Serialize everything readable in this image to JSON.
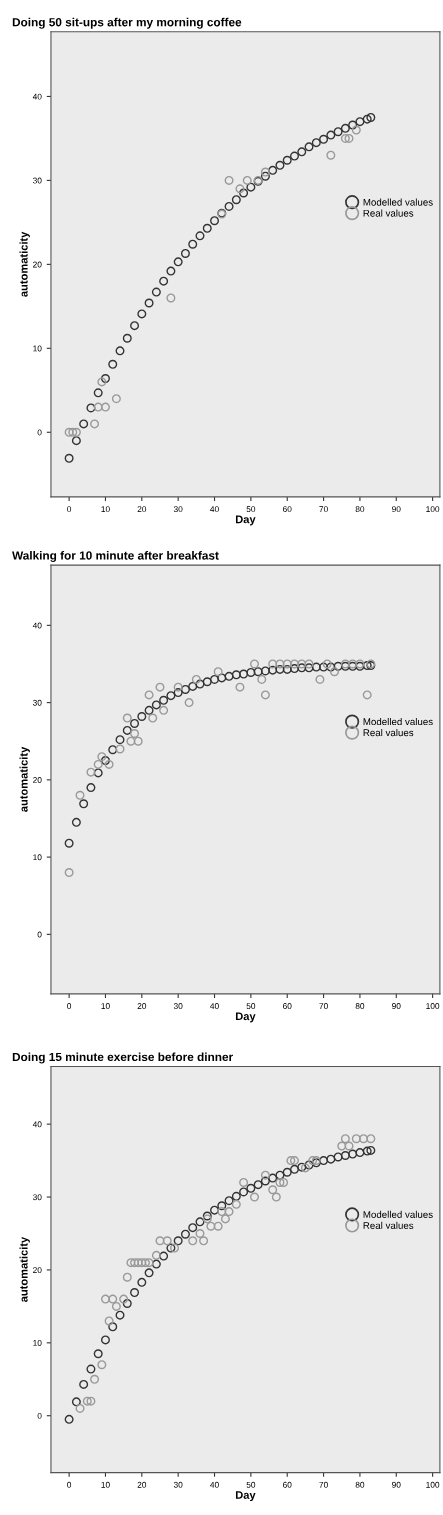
{
  "chart_data": [
    {
      "type": "scatter",
      "title": "Doing 50 sit-ups after my morning coffee",
      "xlabel": "Day",
      "ylabel": "automaticity",
      "xlim": [
        -5,
        102
      ],
      "ylim": [
        -7.7,
        47.7
      ],
      "xticks": [
        0,
        10,
        20,
        30,
        40,
        50,
        60,
        70,
        80,
        90,
        100
      ],
      "yticks": [
        0,
        10,
        20,
        30,
        40
      ],
      "legend": "right",
      "marker": "circle",
      "series": [
        {
          "name": "Modelled values",
          "color": "#333333",
          "x": [
            0,
            2,
            4,
            6,
            8,
            10,
            12,
            14,
            16,
            18,
            20,
            22,
            24,
            26,
            28,
            30,
            32,
            34,
            36,
            38,
            40,
            42,
            44,
            46,
            48,
            50,
            52,
            54,
            56,
            58,
            60,
            62,
            64,
            66,
            68,
            70,
            72,
            74,
            76,
            78,
            80,
            82,
            83
          ],
          "values": [
            -3.1,
            -1.0,
            1.0,
            2.9,
            4.7,
            6.4,
            8.1,
            9.7,
            11.2,
            12.7,
            14.1,
            15.4,
            16.7,
            18.0,
            19.2,
            20.3,
            21.3,
            22.4,
            23.4,
            24.3,
            25.2,
            26.1,
            26.9,
            27.7,
            28.5,
            29.2,
            29.9,
            30.5,
            31.2,
            31.8,
            32.4,
            32.9,
            33.4,
            34.0,
            34.5,
            34.9,
            35.4,
            35.8,
            36.2,
            36.6,
            37.0,
            37.3,
            37.5
          ]
        },
        {
          "name": "Real values",
          "color": "#999999",
          "x": [
            0,
            1,
            2,
            7,
            8,
            9,
            10,
            13,
            28,
            42,
            44,
            47,
            49,
            52,
            54,
            72,
            76,
            77,
            79
          ],
          "values": [
            0,
            0,
            0,
            1,
            3,
            6,
            3,
            4,
            16,
            26,
            30,
            29,
            30,
            30,
            31,
            33,
            35,
            35,
            36
          ]
        }
      ]
    },
    {
      "type": "scatter",
      "title": "Walking for 10 minute after breakfast",
      "xlabel": "Day",
      "ylabel": "automaticity",
      "xlim": [
        -5,
        102
      ],
      "ylim": [
        -7.7,
        47.8
      ],
      "xticks": [
        0,
        10,
        20,
        30,
        40,
        50,
        60,
        70,
        80,
        90,
        100
      ],
      "yticks": [
        0,
        10,
        20,
        30,
        40
      ],
      "legend": "right",
      "marker": "circle",
      "series": [
        {
          "name": "Modelled values",
          "color": "#333333",
          "x": [
            0,
            2,
            4,
            6,
            8,
            10,
            12,
            14,
            16,
            18,
            20,
            22,
            24,
            26,
            28,
            30,
            32,
            34,
            36,
            38,
            40,
            42,
            44,
            46,
            48,
            50,
            52,
            54,
            56,
            58,
            60,
            62,
            64,
            66,
            68,
            70,
            72,
            74,
            76,
            78,
            80,
            82,
            83
          ],
          "values": [
            11.8,
            14.5,
            16.9,
            19.0,
            20.9,
            22.5,
            23.9,
            25.2,
            26.4,
            27.3,
            28.2,
            29.0,
            29.7,
            30.3,
            30.9,
            31.3,
            31.7,
            32.1,
            32.4,
            32.7,
            33.0,
            33.2,
            33.4,
            33.6,
            33.7,
            33.9,
            34.0,
            34.1,
            34.2,
            34.3,
            34.3,
            34.4,
            34.5,
            34.5,
            34.6,
            34.6,
            34.6,
            34.7,
            34.7,
            34.7,
            34.7,
            34.8,
            34.8
          ]
        },
        {
          "name": "Real values",
          "color": "#999999",
          "x": [
            0,
            3,
            6,
            8,
            9,
            11,
            14,
            16,
            17,
            18,
            19,
            22,
            23,
            25,
            26,
            30,
            33,
            35,
            41,
            47,
            51,
            53,
            54,
            56,
            58,
            60,
            62,
            64,
            66,
            69,
            71,
            73,
            76,
            78,
            80,
            82,
            83
          ],
          "values": [
            8,
            18,
            21,
            22,
            23,
            22,
            24,
            28,
            25,
            26,
            25,
            31,
            28,
            32,
            29,
            32,
            30,
            33,
            34,
            32,
            35,
            33,
            31,
            35,
            35,
            35,
            35,
            35,
            35,
            33,
            35,
            34,
            35,
            35,
            35,
            31,
            35
          ]
        }
      ]
    },
    {
      "type": "scatter",
      "title": "Doing 15 minute exercise before dinner",
      "xlabel": "Day",
      "ylabel": "automaticity",
      "xlim": [
        -5,
        102
      ],
      "ylim": [
        -7.8,
        47.9
      ],
      "xticks": [
        0,
        10,
        20,
        30,
        40,
        50,
        60,
        70,
        80,
        90,
        100
      ],
      "yticks": [
        0,
        10,
        20,
        30,
        40
      ],
      "legend": "right",
      "marker": "circle",
      "series": [
        {
          "name": "Modelled values",
          "color": "#333333",
          "x": [
            0,
            2,
            4,
            6,
            8,
            10,
            12,
            14,
            16,
            18,
            20,
            22,
            24,
            26,
            28,
            30,
            32,
            34,
            36,
            38,
            40,
            42,
            44,
            46,
            48,
            50,
            52,
            54,
            56,
            58,
            60,
            62,
            64,
            66,
            68,
            70,
            72,
            74,
            76,
            78,
            80,
            82,
            83
          ],
          "values": [
            -0.5,
            1.9,
            4.3,
            6.4,
            8.5,
            10.4,
            12.2,
            13.8,
            15.4,
            16.9,
            18.3,
            19.6,
            20.8,
            21.9,
            23.0,
            24.0,
            24.9,
            25.8,
            26.6,
            27.4,
            28.2,
            28.8,
            29.5,
            30.1,
            30.7,
            31.2,
            31.7,
            32.2,
            32.6,
            33.0,
            33.4,
            33.8,
            34.1,
            34.4,
            34.7,
            35.0,
            35.2,
            35.5,
            35.7,
            35.9,
            36.1,
            36.3,
            36.4
          ]
        },
        {
          "name": "Real values",
          "color": "#999999",
          "x": [
            3,
            5,
            6,
            7,
            9,
            10,
            11,
            12,
            13,
            15,
            16,
            17,
            18,
            19,
            20,
            21,
            22,
            24,
            25,
            27,
            29,
            34,
            36,
            37,
            38,
            39,
            41,
            42,
            43,
            44,
            46,
            48,
            51,
            54,
            56,
            57,
            58,
            59,
            61,
            62,
            65,
            67,
            68,
            75,
            76,
            77,
            79,
            81,
            83
          ],
          "values": [
            1,
            2,
            2,
            5,
            7,
            16,
            13,
            16,
            15,
            16,
            19,
            21,
            21,
            21,
            21,
            21,
            21,
            22,
            24,
            24,
            23,
            24,
            25,
            24,
            27,
            26,
            26,
            28,
            27,
            28,
            29,
            32,
            30,
            33,
            31,
            30,
            32,
            32,
            35,
            35,
            34,
            35,
            35,
            37,
            38,
            37,
            38,
            38,
            38
          ]
        }
      ]
    }
  ]
}
